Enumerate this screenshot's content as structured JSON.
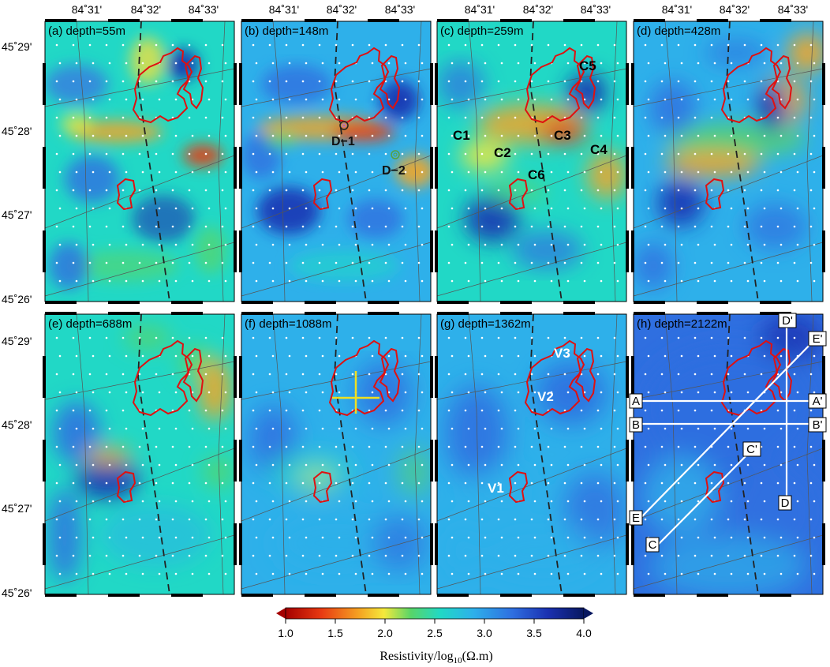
{
  "figure": {
    "lon_ticks": [
      "84˚31'",
      "84˚32'",
      "84˚33'"
    ],
    "lat_ticks_top": [
      "45˚29'",
      "45˚28'",
      "45˚27'",
      "45˚26'"
    ],
    "lat_ticks_bottom": [
      "45˚29'",
      "45˚28'",
      "45˚27'",
      "45˚26'"
    ]
  },
  "panels": [
    {
      "id": "a",
      "title": "(a) depth=55m",
      "depth_m": 55
    },
    {
      "id": "b",
      "title": "(b) depth=148m",
      "depth_m": 148
    },
    {
      "id": "c",
      "title": "(c) depth=259m",
      "depth_m": 259
    },
    {
      "id": "d",
      "title": "(d) depth=428m",
      "depth_m": 428
    },
    {
      "id": "e",
      "title": "(e) depth=688m",
      "depth_m": 688
    },
    {
      "id": "f",
      "title": "(f) depth=1088m",
      "depth_m": 1088
    },
    {
      "id": "g",
      "title": "(g) depth=1362m",
      "depth_m": 1362
    },
    {
      "id": "h",
      "title": "(h) depth=2122m",
      "depth_m": 2122
    }
  ],
  "annotations": {
    "b": {
      "d1": "D−1",
      "d2": "D−2"
    },
    "c": {
      "c1": "C1",
      "c2": "C2",
      "c3": "C3",
      "c4": "C4",
      "c5": "C5",
      "c6": "C6"
    },
    "g": {
      "v1": "V1",
      "v2": "V2",
      "v3": "V3"
    },
    "h": {
      "a": "A",
      "a_prime": "A'",
      "b": "B",
      "b_prime": "B'",
      "c": "C",
      "c_prime": "C'",
      "d": "D",
      "d_prime": "D'",
      "e": "E",
      "e_prime": "E'"
    }
  },
  "colorbar": {
    "min": 1.0,
    "max": 4.0,
    "ticks": [
      "1.0",
      "1.5",
      "2.0",
      "2.5",
      "3.0",
      "3.5",
      "4.0"
    ],
    "title_prefix": "Resistivity/log",
    "title_sub": "10",
    "title_suffix": "(Ω.m)",
    "colors": [
      "#a50000",
      "#e83a12",
      "#f5a623",
      "#f4e93c",
      "#58d568",
      "#21d8c6",
      "#2eb0ea",
      "#2f6fe0",
      "#1a30b0",
      "#081860"
    ]
  },
  "colors": {
    "anomaly_outline": "#e01010",
    "dashed_fault": "#222222",
    "profile_line": "#ffffff",
    "cross_marker": "#f0e020"
  }
}
